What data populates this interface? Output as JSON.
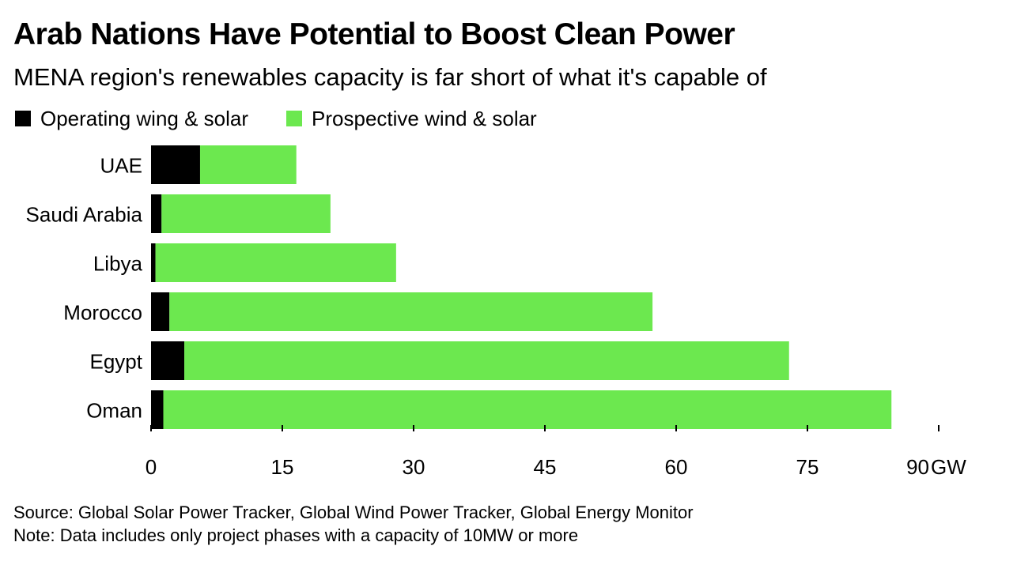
{
  "title": "Arab Nations Have Potential to Boost Clean Power",
  "subtitle": "MENA region's renewables capacity is far short of what it's capable of",
  "legend": [
    {
      "label": "Operating wing & solar",
      "color": "#000000"
    },
    {
      "label": "Prospective wind & solar",
      "color": "#6ce84f"
    }
  ],
  "chart_data": {
    "type": "bar",
    "orientation": "horizontal",
    "stacked": true,
    "categories": [
      "UAE",
      "Saudi Arabia",
      "Libya",
      "Morocco",
      "Egypt",
      "Oman"
    ],
    "series": [
      {
        "name": "Operating wing & solar",
        "color": "#000000",
        "values": [
          5.6,
          1.2,
          0.5,
          2.1,
          3.8,
          1.4
        ]
      },
      {
        "name": "Prospective wind & solar",
        "color": "#6ce84f",
        "values": [
          11.0,
          19.3,
          27.5,
          55.2,
          69.1,
          83.2
        ]
      }
    ],
    "xlim": [
      0,
      90
    ],
    "xticks": [
      0,
      15,
      30,
      45,
      60,
      75,
      90
    ],
    "xunit": "GW",
    "grid": false,
    "legend_position": "top-left"
  },
  "notes": {
    "source": "Source: Global Solar Power Tracker, Global Wind Power Tracker, Global Energy Monitor",
    "note": "Note: Data includes only project phases with a capacity of 10MW or more"
  }
}
